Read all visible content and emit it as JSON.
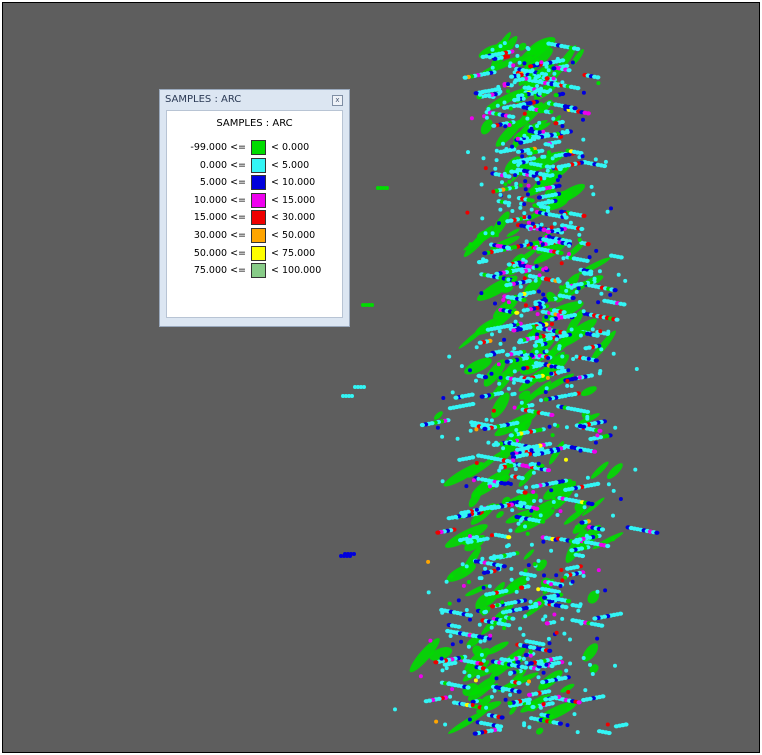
{
  "window": {
    "title": "SAMPLES : ARC"
  },
  "legend": {
    "heading": "SAMPLES : ARC",
    "rows": [
      {
        "lower": "-99.000 <=",
        "upper": "< 0.000",
        "color": "#00dd00"
      },
      {
        "lower": "0.000 <=",
        "upper": "< 5.000",
        "color": "#33f5f5"
      },
      {
        "lower": "5.000 <=",
        "upper": "< 10.000",
        "color": "#0000dd"
      },
      {
        "lower": "10.000 <=",
        "upper": "< 15.000",
        "color": "#ee00ee"
      },
      {
        "lower": "15.000 <=",
        "upper": "< 30.000",
        "color": "#ee0000"
      },
      {
        "lower": "30.000 <=",
        "upper": "< 50.000",
        "color": "#ffa500"
      },
      {
        "lower": "50.000 <=",
        "upper": "< 75.000",
        "color": "#ffff00"
      },
      {
        "lower": "75.000 <=",
        "upper": "< 100.000",
        "color": "#88cc88"
      }
    ]
  }
}
